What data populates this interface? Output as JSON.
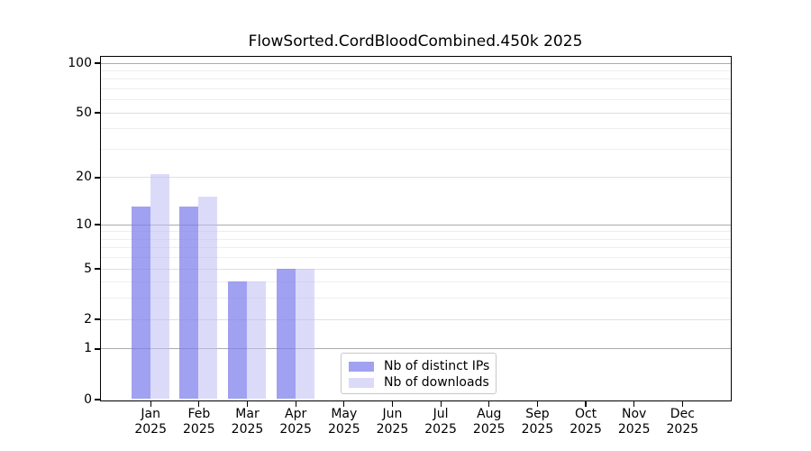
{
  "chart_data": {
    "type": "bar",
    "title": "FlowSorted.CordBloodCombined.450k 2025",
    "categories": [
      "Jan",
      "Feb",
      "Mar",
      "Apr",
      "May",
      "Jun",
      "Jul",
      "Aug",
      "Sep",
      "Oct",
      "Nov",
      "Dec"
    ],
    "category_year": "2025",
    "series": [
      {
        "name": "Nb of distinct IPs",
        "color": "#7d7dec",
        "alpha": 0.72,
        "values": [
          13,
          13,
          4,
          5,
          0,
          0,
          0,
          0,
          0,
          0,
          0,
          0
        ]
      },
      {
        "name": "Nb of downloads",
        "color": "#bebef4",
        "alpha": 0.55,
        "values": [
          21,
          15,
          4,
          5,
          0,
          0,
          0,
          0,
          0,
          0,
          0,
          0
        ]
      }
    ],
    "yscale": "log10(1+y)",
    "ylim": [
      0,
      110
    ],
    "y_ticks": [
      0,
      1,
      2,
      5,
      10,
      20,
      50,
      100
    ],
    "y_minor_ticks": [
      3,
      4,
      6,
      7,
      8,
      9,
      30,
      40,
      60,
      70,
      80,
      90
    ],
    "grid": true,
    "legend_position": "lower center"
  },
  "colors": {
    "background": "#ffffff",
    "axis_frame": "#000000",
    "grid_decade": "#ababab",
    "grid_labeled": "#e0e0e0",
    "grid_minor": "#eeeeee",
    "text": "#000000",
    "legend_border": "#c8c8c8"
  }
}
